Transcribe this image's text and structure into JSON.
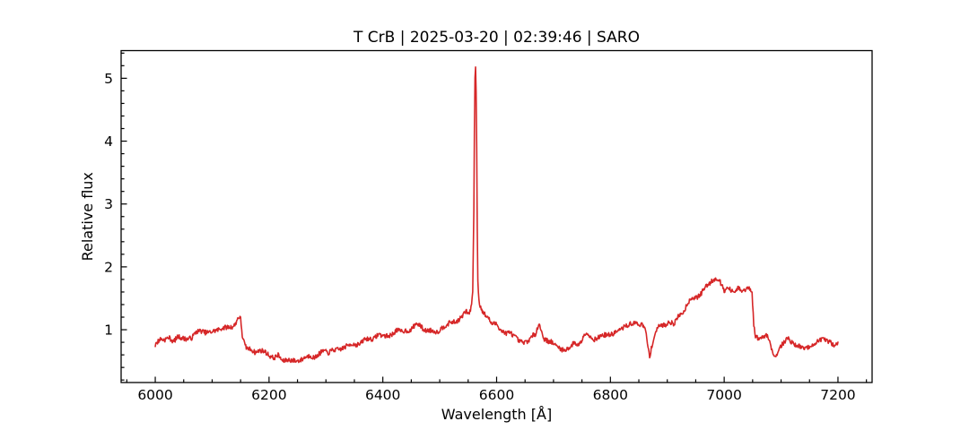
{
  "window": {
    "background": "#ffffff"
  },
  "chart_data": {
    "type": "line",
    "title": "T CrB | 2025-03-20 | 02:39:46 | SARO",
    "title_parts": {
      "object": "T CrB",
      "date": "2025-03-20",
      "time": "02:39:46",
      "observatory": "SARO"
    },
    "xlabel": "Wavelength [Å]",
    "ylabel": "Relative flux",
    "xlim": [
      5940,
      7260
    ],
    "ylim": [
      0.16,
      5.44
    ],
    "xticks": [
      6000,
      6200,
      6400,
      6600,
      6800,
      7000,
      7200
    ],
    "yticks": [
      1,
      2,
      3,
      4,
      5
    ],
    "xtick_minor_step": 50,
    "ytick_minor_step": 0.2,
    "tick_direction": "in",
    "grid": false,
    "legend": null,
    "line_color": "#d62728",
    "axis_color": "#000000",
    "line_width": 1.6,
    "series": [
      {
        "name": "spectrum",
        "x_start": 6000,
        "x_end": 7200,
        "x_step": 1,
        "peak": {
          "wavelength": 6563,
          "flux": 5.18,
          "feature": "H-alpha emission"
        },
        "noise": {
          "seed": 7,
          "amplitude": 0.05,
          "fast_scale": 0.75,
          "slow_scale": 0.9,
          "slow_period": 8,
          "suppress_above_flux": 2.2,
          "suppress_factor": 0.3
        },
        "envelope_points": [
          [
            6000,
            0.78
          ],
          [
            6010,
            0.82
          ],
          [
            6025,
            0.84
          ],
          [
            6040,
            0.86
          ],
          [
            6060,
            0.9
          ],
          [
            6080,
            0.94
          ],
          [
            6100,
            0.97
          ],
          [
            6115,
            1.0
          ],
          [
            6130,
            1.02
          ],
          [
            6140,
            1.08
          ],
          [
            6146,
            1.2
          ],
          [
            6150,
            1.15
          ],
          [
            6153,
            0.88
          ],
          [
            6158,
            0.74
          ],
          [
            6165,
            0.7
          ],
          [
            6180,
            0.66
          ],
          [
            6195,
            0.62
          ],
          [
            6210,
            0.57
          ],
          [
            6225,
            0.53
          ],
          [
            6240,
            0.52
          ],
          [
            6255,
            0.55
          ],
          [
            6270,
            0.56
          ],
          [
            6285,
            0.6
          ],
          [
            6300,
            0.64
          ],
          [
            6315,
            0.68
          ],
          [
            6330,
            0.72
          ],
          [
            6345,
            0.76
          ],
          [
            6360,
            0.8
          ],
          [
            6375,
            0.84
          ],
          [
            6390,
            0.88
          ],
          [
            6405,
            0.92
          ],
          [
            6420,
            0.95
          ],
          [
            6435,
            0.97
          ],
          [
            6450,
            1.02
          ],
          [
            6460,
            1.12
          ],
          [
            6468,
            1.08
          ],
          [
            6478,
            0.98
          ],
          [
            6488,
            0.96
          ],
          [
            6498,
            1.0
          ],
          [
            6508,
            1.04
          ],
          [
            6518,
            1.08
          ],
          [
            6528,
            1.13
          ],
          [
            6538,
            1.2
          ],
          [
            6546,
            1.28
          ],
          [
            6551,
            1.22
          ],
          [
            6555,
            1.32
          ],
          [
            6558,
            1.6
          ],
          [
            6560,
            2.9
          ],
          [
            6561,
            4.2
          ],
          [
            6562,
            5.0
          ],
          [
            6563,
            5.18
          ],
          [
            6564,
            4.8
          ],
          [
            6565,
            3.9
          ],
          [
            6566,
            2.6
          ],
          [
            6567,
            1.8
          ],
          [
            6569,
            1.45
          ],
          [
            6571,
            1.38
          ],
          [
            6576,
            1.25
          ],
          [
            6582,
            1.18
          ],
          [
            6590,
            1.12
          ],
          [
            6600,
            1.06
          ],
          [
            6610,
            1.0
          ],
          [
            6620,
            0.94
          ],
          [
            6630,
            0.88
          ],
          [
            6640,
            0.84
          ],
          [
            6650,
            0.83
          ],
          [
            6660,
            0.86
          ],
          [
            6668,
            0.9
          ],
          [
            6674,
            1.08
          ],
          [
            6678,
            1.02
          ],
          [
            6684,
            0.86
          ],
          [
            6692,
            0.8
          ],
          [
            6700,
            0.77
          ],
          [
            6710,
            0.73
          ],
          [
            6718,
            0.68
          ],
          [
            6726,
            0.73
          ],
          [
            6736,
            0.76
          ],
          [
            6748,
            0.8
          ],
          [
            6757,
            0.95
          ],
          [
            6764,
            0.88
          ],
          [
            6772,
            0.86
          ],
          [
            6782,
            0.9
          ],
          [
            6794,
            0.94
          ],
          [
            6806,
            0.96
          ],
          [
            6818,
            1.0
          ],
          [
            6830,
            1.04
          ],
          [
            6840,
            1.08
          ],
          [
            6848,
            1.12
          ],
          [
            6856,
            1.06
          ],
          [
            6862,
            0.98
          ],
          [
            6866,
            0.72
          ],
          [
            6869,
            0.6
          ],
          [
            6873,
            0.78
          ],
          [
            6877,
            0.88
          ],
          [
            6882,
            1.0
          ],
          [
            6890,
            1.05
          ],
          [
            6900,
            1.08
          ],
          [
            6910,
            1.12
          ],
          [
            6920,
            1.2
          ],
          [
            6930,
            1.3
          ],
          [
            6940,
            1.44
          ],
          [
            6950,
            1.52
          ],
          [
            6960,
            1.6
          ],
          [
            6970,
            1.68
          ],
          [
            6980,
            1.75
          ],
          [
            6988,
            1.78
          ],
          [
            6996,
            1.7
          ],
          [
            7004,
            1.64
          ],
          [
            7012,
            1.62
          ],
          [
            7020,
            1.6
          ],
          [
            7028,
            1.63
          ],
          [
            7036,
            1.62
          ],
          [
            7044,
            1.62
          ],
          [
            7049,
            1.55
          ],
          [
            7052,
            1.05
          ],
          [
            7055,
            0.88
          ],
          [
            7060,
            0.85
          ],
          [
            7068,
            0.88
          ],
          [
            7074,
            0.95
          ],
          [
            7080,
            0.84
          ],
          [
            7086,
            0.66
          ],
          [
            7090,
            0.6
          ],
          [
            7095,
            0.72
          ],
          [
            7102,
            0.8
          ],
          [
            7110,
            0.85
          ],
          [
            7118,
            0.83
          ],
          [
            7126,
            0.78
          ],
          [
            7134,
            0.73
          ],
          [
            7142,
            0.68
          ],
          [
            7150,
            0.72
          ],
          [
            7158,
            0.78
          ],
          [
            7166,
            0.82
          ],
          [
            7174,
            0.85
          ],
          [
            7182,
            0.82
          ],
          [
            7190,
            0.8
          ],
          [
            7200,
            0.78
          ]
        ]
      }
    ]
  }
}
